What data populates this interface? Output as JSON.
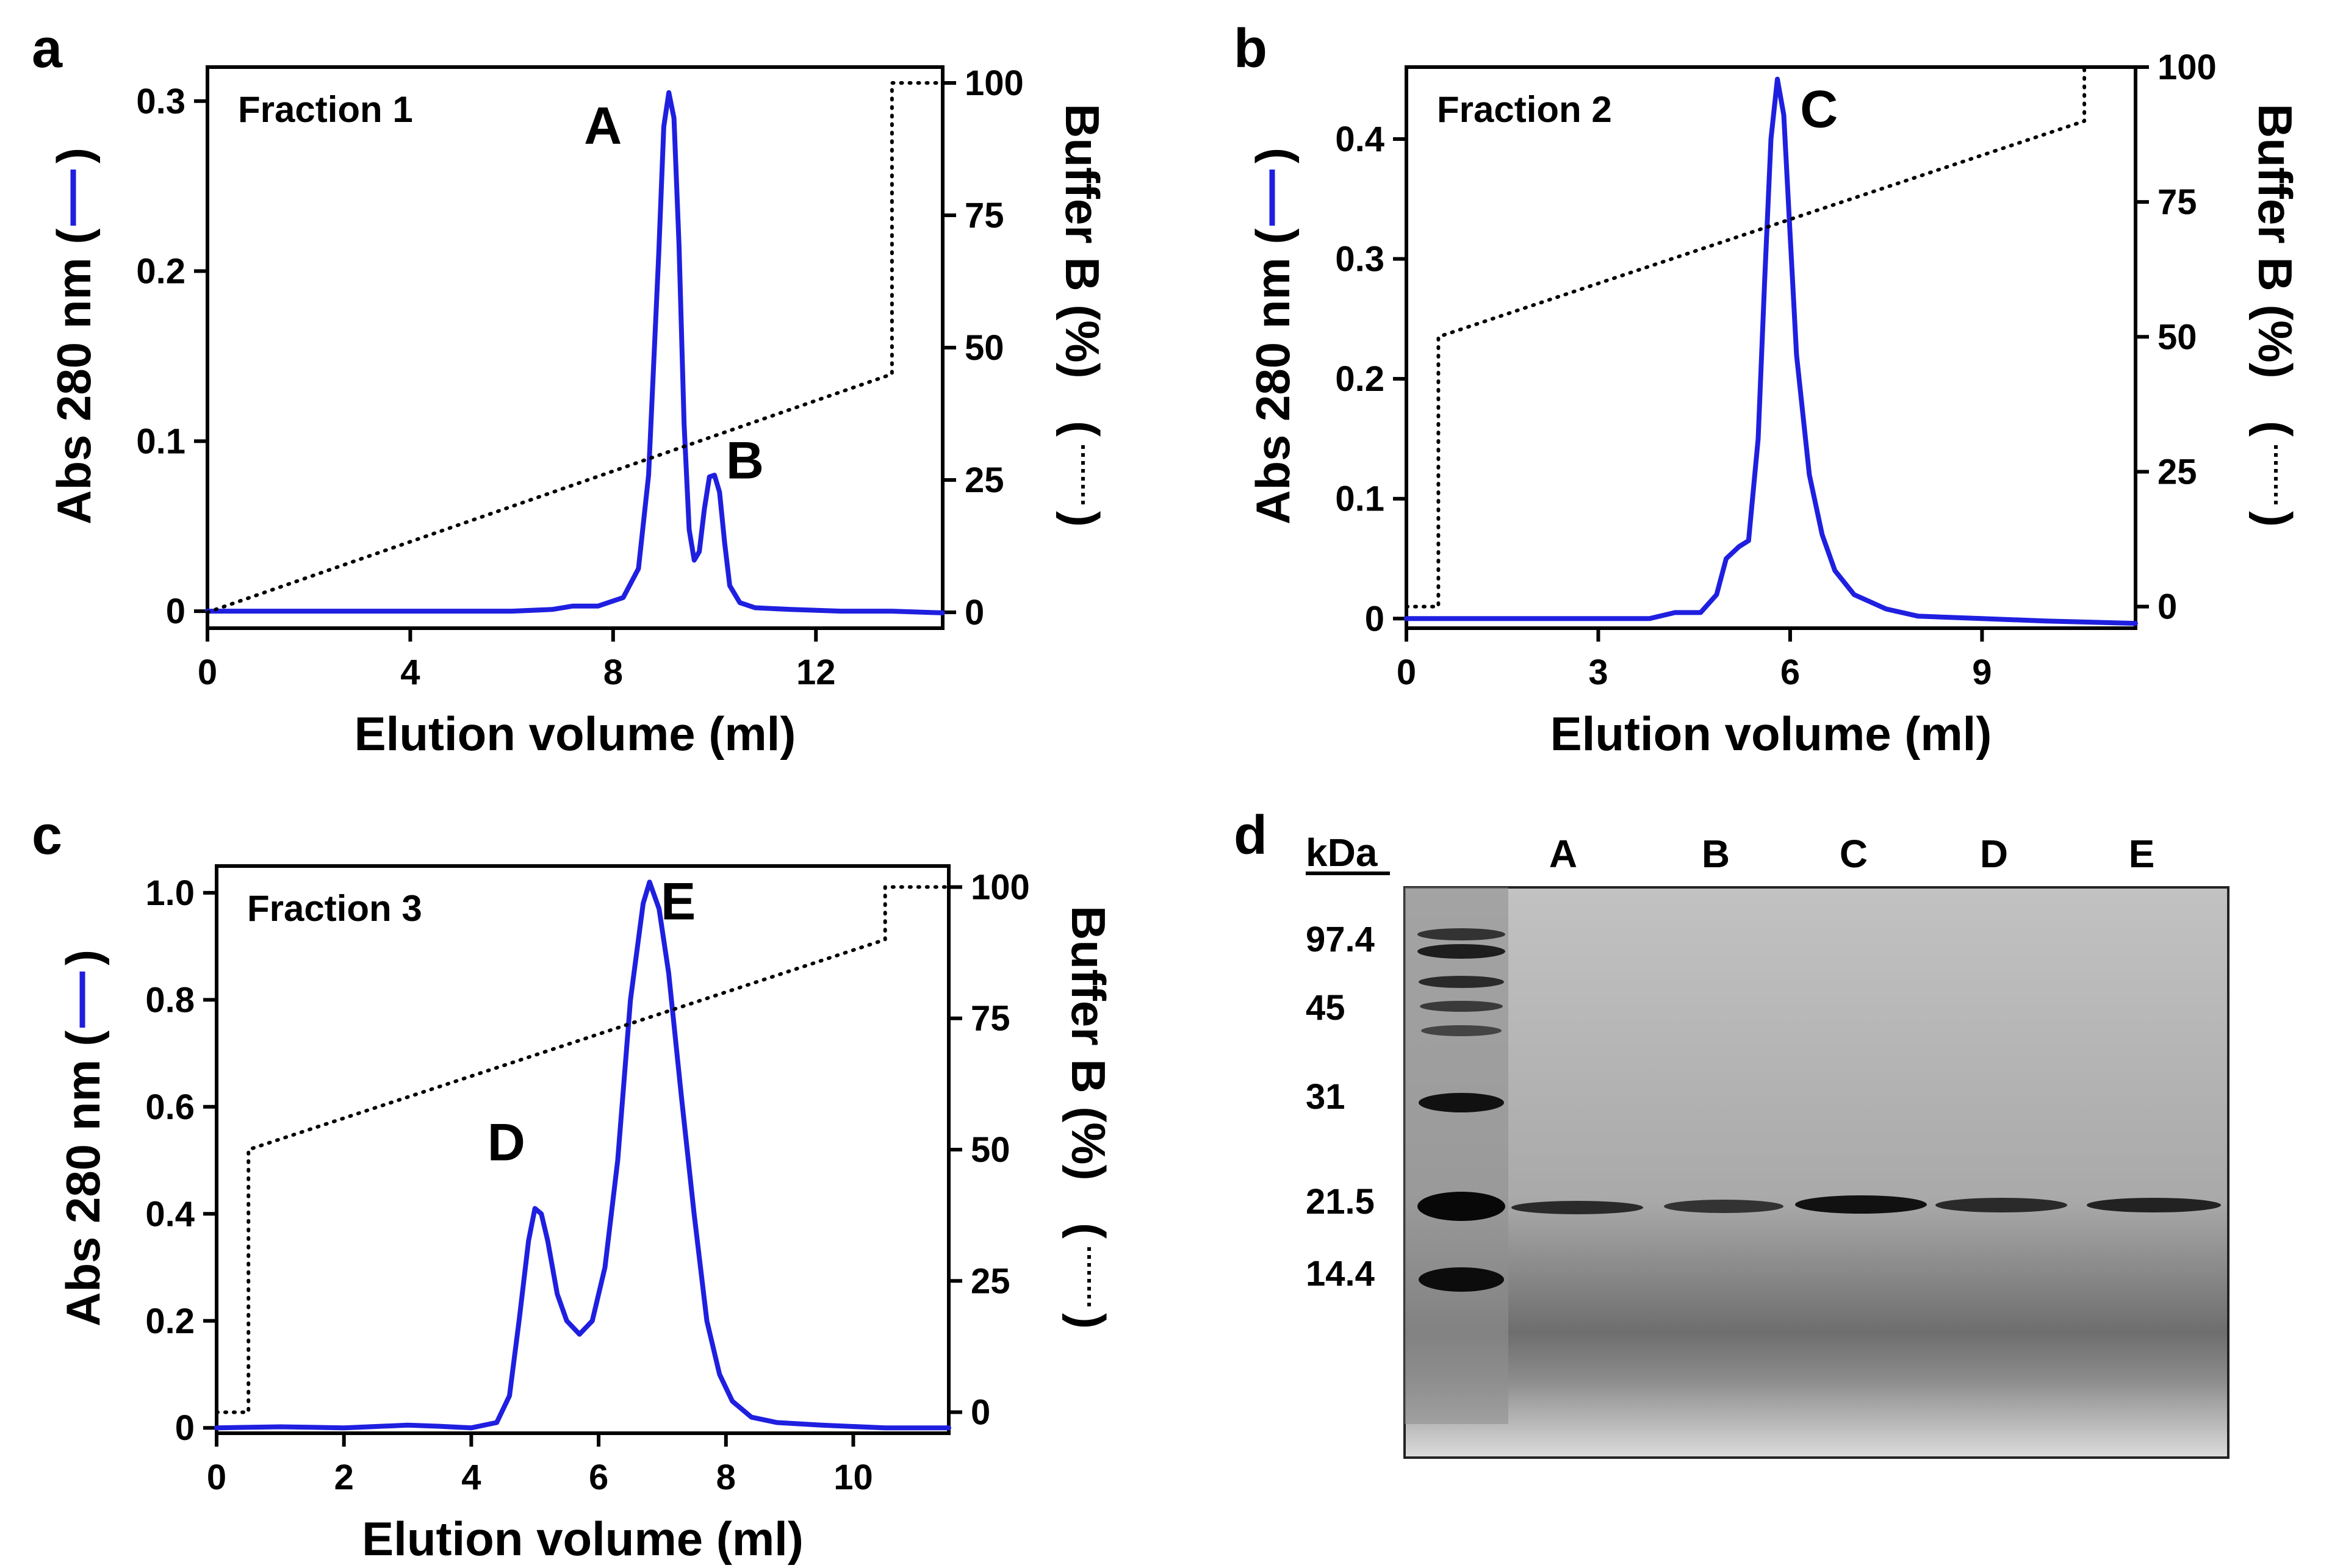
{
  "colors": {
    "absorbance": "#1f1fe0",
    "buffer": "#000000",
    "axis": "#000000",
    "gel_background": "#b4b4b4",
    "gel_band": "#2a2a2a"
  },
  "chart_data": [
    {
      "panel": "a",
      "type": "line",
      "inset_label": "Fraction 1",
      "xlabel": "Elution volume (ml)",
      "ylabel": "Abs 280 nm (",
      "ylabel_close": ")",
      "y2label": "Buffer B (%)",
      "y2label_paren_open": "(",
      "y2label_paren_close": ")",
      "xlim": [
        0,
        14.5
      ],
      "ylim": [
        -0.01,
        0.32
      ],
      "y2lim": [
        -3,
        103
      ],
      "xticks": [
        0,
        4,
        8,
        12
      ],
      "xtick_labels": [
        "0",
        "4",
        "8",
        "12"
      ],
      "yticks": [
        0,
        0.1,
        0.2,
        0.3
      ],
      "ytick_labels": [
        "0",
        "0.1",
        "0.2",
        "0.3"
      ],
      "y2ticks": [
        0,
        25,
        50,
        75,
        100
      ],
      "y2tick_labels": [
        "0",
        "25",
        "50",
        "75",
        "100"
      ],
      "series": [
        {
          "name": "Abs 280 nm",
          "axis": "left",
          "style": "solid",
          "x": [
            0,
            1,
            2,
            3,
            4,
            5,
            6,
            6.8,
            7.2,
            7.7,
            8.2,
            8.5,
            8.7,
            8.9,
            9.0,
            9.1,
            9.2,
            9.3,
            9.4,
            9.5,
            9.6,
            9.7,
            9.8,
            9.9,
            10.0,
            10.1,
            10.2,
            10.3,
            10.5,
            10.8,
            11.5,
            12.5,
            13.5,
            14.5
          ],
          "y": [
            0,
            0,
            0,
            0,
            0,
            0,
            0,
            0.001,
            0.003,
            0.003,
            0.008,
            0.025,
            0.08,
            0.21,
            0.285,
            0.305,
            0.29,
            0.215,
            0.11,
            0.048,
            0.03,
            0.035,
            0.06,
            0.079,
            0.08,
            0.07,
            0.04,
            0.015,
            0.005,
            0.002,
            0.001,
            0,
            0,
            -0.001
          ]
        },
        {
          "name": "Buffer B",
          "axis": "right",
          "style": "dotted",
          "x": [
            0,
            13.5,
            13.5,
            14.5
          ],
          "y": [
            0,
            45,
            100,
            100
          ]
        }
      ],
      "annotations": [
        {
          "text": "A",
          "x": 7.8,
          "y": 0.275
        },
        {
          "text": "B",
          "x": 10.6,
          "y": 0.078
        }
      ]
    },
    {
      "panel": "b",
      "type": "line",
      "inset_label": "Fraction 2",
      "xlabel": "Elution volume (ml)",
      "ylabel": "Abs 280 nm (",
      "ylabel_close": ")",
      "y2label": "Buffer B (%)",
      "y2label_paren_open": "(",
      "y2label_paren_close": ")",
      "xlim": [
        0,
        11.4
      ],
      "ylim": [
        -0.008,
        0.46
      ],
      "y2lim": [
        -4,
        100
      ],
      "xticks": [
        0,
        3,
        6,
        9
      ],
      "xtick_labels": [
        "0",
        "3",
        "6",
        "9"
      ],
      "yticks": [
        0,
        0.1,
        0.2,
        0.3,
        0.4
      ],
      "ytick_labels": [
        "0",
        "0.1",
        "0.2",
        "0.3",
        "0.4"
      ],
      "y2ticks": [
        0,
        25,
        50,
        75,
        100
      ],
      "y2tick_labels": [
        "0",
        "25",
        "50",
        "75",
        "100"
      ],
      "series": [
        {
          "name": "Abs 280 nm",
          "axis": "left",
          "style": "solid",
          "x": [
            0,
            1,
            2,
            3,
            3.8,
            4.2,
            4.6,
            4.85,
            5.0,
            5.2,
            5.35,
            5.5,
            5.6,
            5.7,
            5.8,
            5.9,
            6.0,
            6.1,
            6.3,
            6.5,
            6.7,
            7.0,
            7.5,
            8,
            9,
            10,
            11.4
          ],
          "y": [
            0,
            0,
            0,
            0,
            0,
            0.005,
            0.005,
            0.02,
            0.05,
            0.06,
            0.065,
            0.15,
            0.28,
            0.4,
            0.45,
            0.42,
            0.32,
            0.22,
            0.12,
            0.07,
            0.04,
            0.02,
            0.008,
            0.002,
            0,
            -0.002,
            -0.004
          ]
        },
        {
          "name": "Buffer B",
          "axis": "right",
          "style": "dotted",
          "x": [
            0,
            0.5,
            0.5,
            10.6,
            10.6,
            11.4
          ],
          "y": [
            0,
            0,
            50,
            90,
            100,
            100
          ]
        }
      ],
      "annotations": [
        {
          "text": "C",
          "x": 6.45,
          "y": 0.41
        }
      ]
    },
    {
      "panel": "c",
      "type": "line",
      "inset_label": "Fraction 3",
      "xlabel": "Elution volume (ml)",
      "ylabel": "Abs 280 nm (",
      "ylabel_close": ")",
      "y2label": "Buffer B (%)",
      "y2label_paren_open": "(",
      "y2label_paren_close": ")",
      "xlim": [
        0,
        11.5
      ],
      "ylim": [
        -0.01,
        1.05
      ],
      "y2lim": [
        -4,
        104
      ],
      "xticks": [
        0,
        2,
        4,
        6,
        8,
        10
      ],
      "xtick_labels": [
        "0",
        "2",
        "4",
        "6",
        "8",
        "10"
      ],
      "yticks": [
        0,
        0.2,
        0.4,
        0.6,
        0.8,
        1.0
      ],
      "ytick_labels": [
        "0",
        "0.2",
        "0.4",
        "0.6",
        "0.8",
        "1.0"
      ],
      "y2ticks": [
        0,
        25,
        50,
        75,
        100
      ],
      "y2tick_labels": [
        "0",
        "25",
        "50",
        "75",
        "100"
      ],
      "series": [
        {
          "name": "Abs 280 nm",
          "axis": "left",
          "style": "solid",
          "x": [
            0,
            1,
            2,
            3,
            3.5,
            4.0,
            4.4,
            4.6,
            4.75,
            4.9,
            5.0,
            5.1,
            5.2,
            5.35,
            5.5,
            5.7,
            5.9,
            6.1,
            6.3,
            6.5,
            6.7,
            6.8,
            6.95,
            7.1,
            7.3,
            7.5,
            7.7,
            7.9,
            8.1,
            8.4,
            8.8,
            9.5,
            10.5,
            11.5
          ],
          "y": [
            0,
            0.002,
            0,
            0.005,
            0.003,
            0,
            0.01,
            0.06,
            0.2,
            0.35,
            0.41,
            0.4,
            0.35,
            0.25,
            0.2,
            0.175,
            0.2,
            0.3,
            0.5,
            0.8,
            0.98,
            1.02,
            0.97,
            0.85,
            0.62,
            0.4,
            0.2,
            0.1,
            0.05,
            0.02,
            0.01,
            0.005,
            0,
            0
          ]
        },
        {
          "name": "Buffer B",
          "axis": "right",
          "style": "dotted",
          "x": [
            0,
            0.5,
            0.5,
            10.5,
            10.5,
            11.5
          ],
          "y": [
            0,
            0,
            50,
            90,
            100,
            100
          ]
        }
      ],
      "annotations": [
        {
          "text": "D",
          "x": 4.55,
          "y": 0.5
        },
        {
          "text": "E",
          "x": 7.25,
          "y": 0.95
        }
      ]
    },
    {
      "panel": "d",
      "type": "gel",
      "unit_label": "kDa",
      "lane_labels": [
        "A",
        "B",
        "C",
        "D",
        "E"
      ],
      "marker_weights": [
        "97.4",
        "45",
        "31",
        "21.5",
        "14.4"
      ]
    }
  ]
}
